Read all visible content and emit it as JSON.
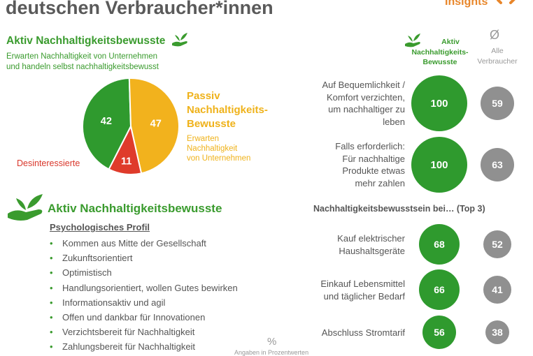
{
  "header": {
    "title": "deutschen Verbraucher*innen",
    "brand": "Insights"
  },
  "segments": {
    "aktiv_title": "Aktiv Nachhaltigkeitsbewusste",
    "aktiv_sub_line1": "Erwarten Nachhaltigkeit von Unternehmen",
    "aktiv_sub_line2": "und handeln selbst nachhaltigkeitsbewusst",
    "passiv_title_1": "Passiv",
    "passiv_title_2": "Nachhaltigkeits-",
    "passiv_title_3": "Bewusste",
    "passiv_sub_1": "Erwarten",
    "passiv_sub_2": "Nachhaltigkeit",
    "passiv_sub_3": "von Unternehmen",
    "desinteressierte": "Desinteressierte"
  },
  "profile": {
    "heading": "Aktiv Nachhaltigkeitsbewusste",
    "subheading": "Psychologisches Profil",
    "items": [
      "Kommen aus Mitte der Gesellschaft",
      "Zukunftsorientiert",
      "Optimistisch",
      "Handlungsorientiert, wollen Gutes bewirken",
      "Informationsaktiv und agil",
      "Offen und dankbar für Innovationen",
      "Verzichtsbereit für Nachhaltigkeit",
      "Zahlungsbereit für Nachhaltigkeit"
    ]
  },
  "footer": {
    "percent_symbol": "%",
    "note": "Angaben in Prozentwerten"
  },
  "columns": {
    "aktiv_1": "Aktiv",
    "aktiv_2": "Nachhaltigkeits-",
    "aktiv_3": "Bewusste",
    "avg_symbol": "Ø",
    "all_1": "Alle",
    "all_2": "Verbraucher"
  },
  "top3_heading": "Nachhaltigkeitsbewusstsein bei… (Top 3)",
  "chart_data": [
    {
      "type": "pie",
      "categories": [
        "Aktiv Nachhaltigkeitsbewusste",
        "Passiv Nachhaltigkeits-Bewusste",
        "Desinteressierte"
      ],
      "values": [
        42,
        47,
        11
      ],
      "colors": [
        "#2f9a2e",
        "#f2b21d",
        "#df3b2b"
      ]
    },
    {
      "type": "table",
      "series_names": [
        "Aktiv Nachhaltigkeits-Bewusste",
        "Ø Alle Verbraucher"
      ],
      "rows": [
        {
          "label_lines": [
            "Auf Bequemlichkeit /",
            "Komfort verzichten,",
            "um nachhaltiger zu",
            "leben"
          ],
          "aktiv": 100,
          "alle": 59
        },
        {
          "label_lines": [
            "Falls erforderlich:",
            "Für nachhaltige",
            "Produkte etwas",
            "mehr zahlen"
          ],
          "aktiv": 100,
          "alle": 63
        }
      ]
    },
    {
      "type": "table",
      "title": "Nachhaltigkeitsbewusstsein bei… (Top 3)",
      "series_names": [
        "Aktiv Nachhaltigkeits-Bewusste",
        "Ø Alle Verbraucher"
      ],
      "rows": [
        {
          "label_lines": [
            "Kauf elektrischer",
            "Haushaltsgeräte"
          ],
          "aktiv": 68,
          "alle": 52
        },
        {
          "label_lines": [
            "Einkauf Lebensmittel",
            "und täglicher Bedarf"
          ],
          "aktiv": 66,
          "alle": 41
        },
        {
          "label_lines": [
            "Abschluss Stromtarif"
          ],
          "aktiv": 56,
          "alle": 38
        }
      ]
    }
  ],
  "colors": {
    "green": "#2f9a2e",
    "yellow": "#f2b21d",
    "red": "#df3b2b",
    "grey": "#909090",
    "orange": "#e8862a"
  }
}
